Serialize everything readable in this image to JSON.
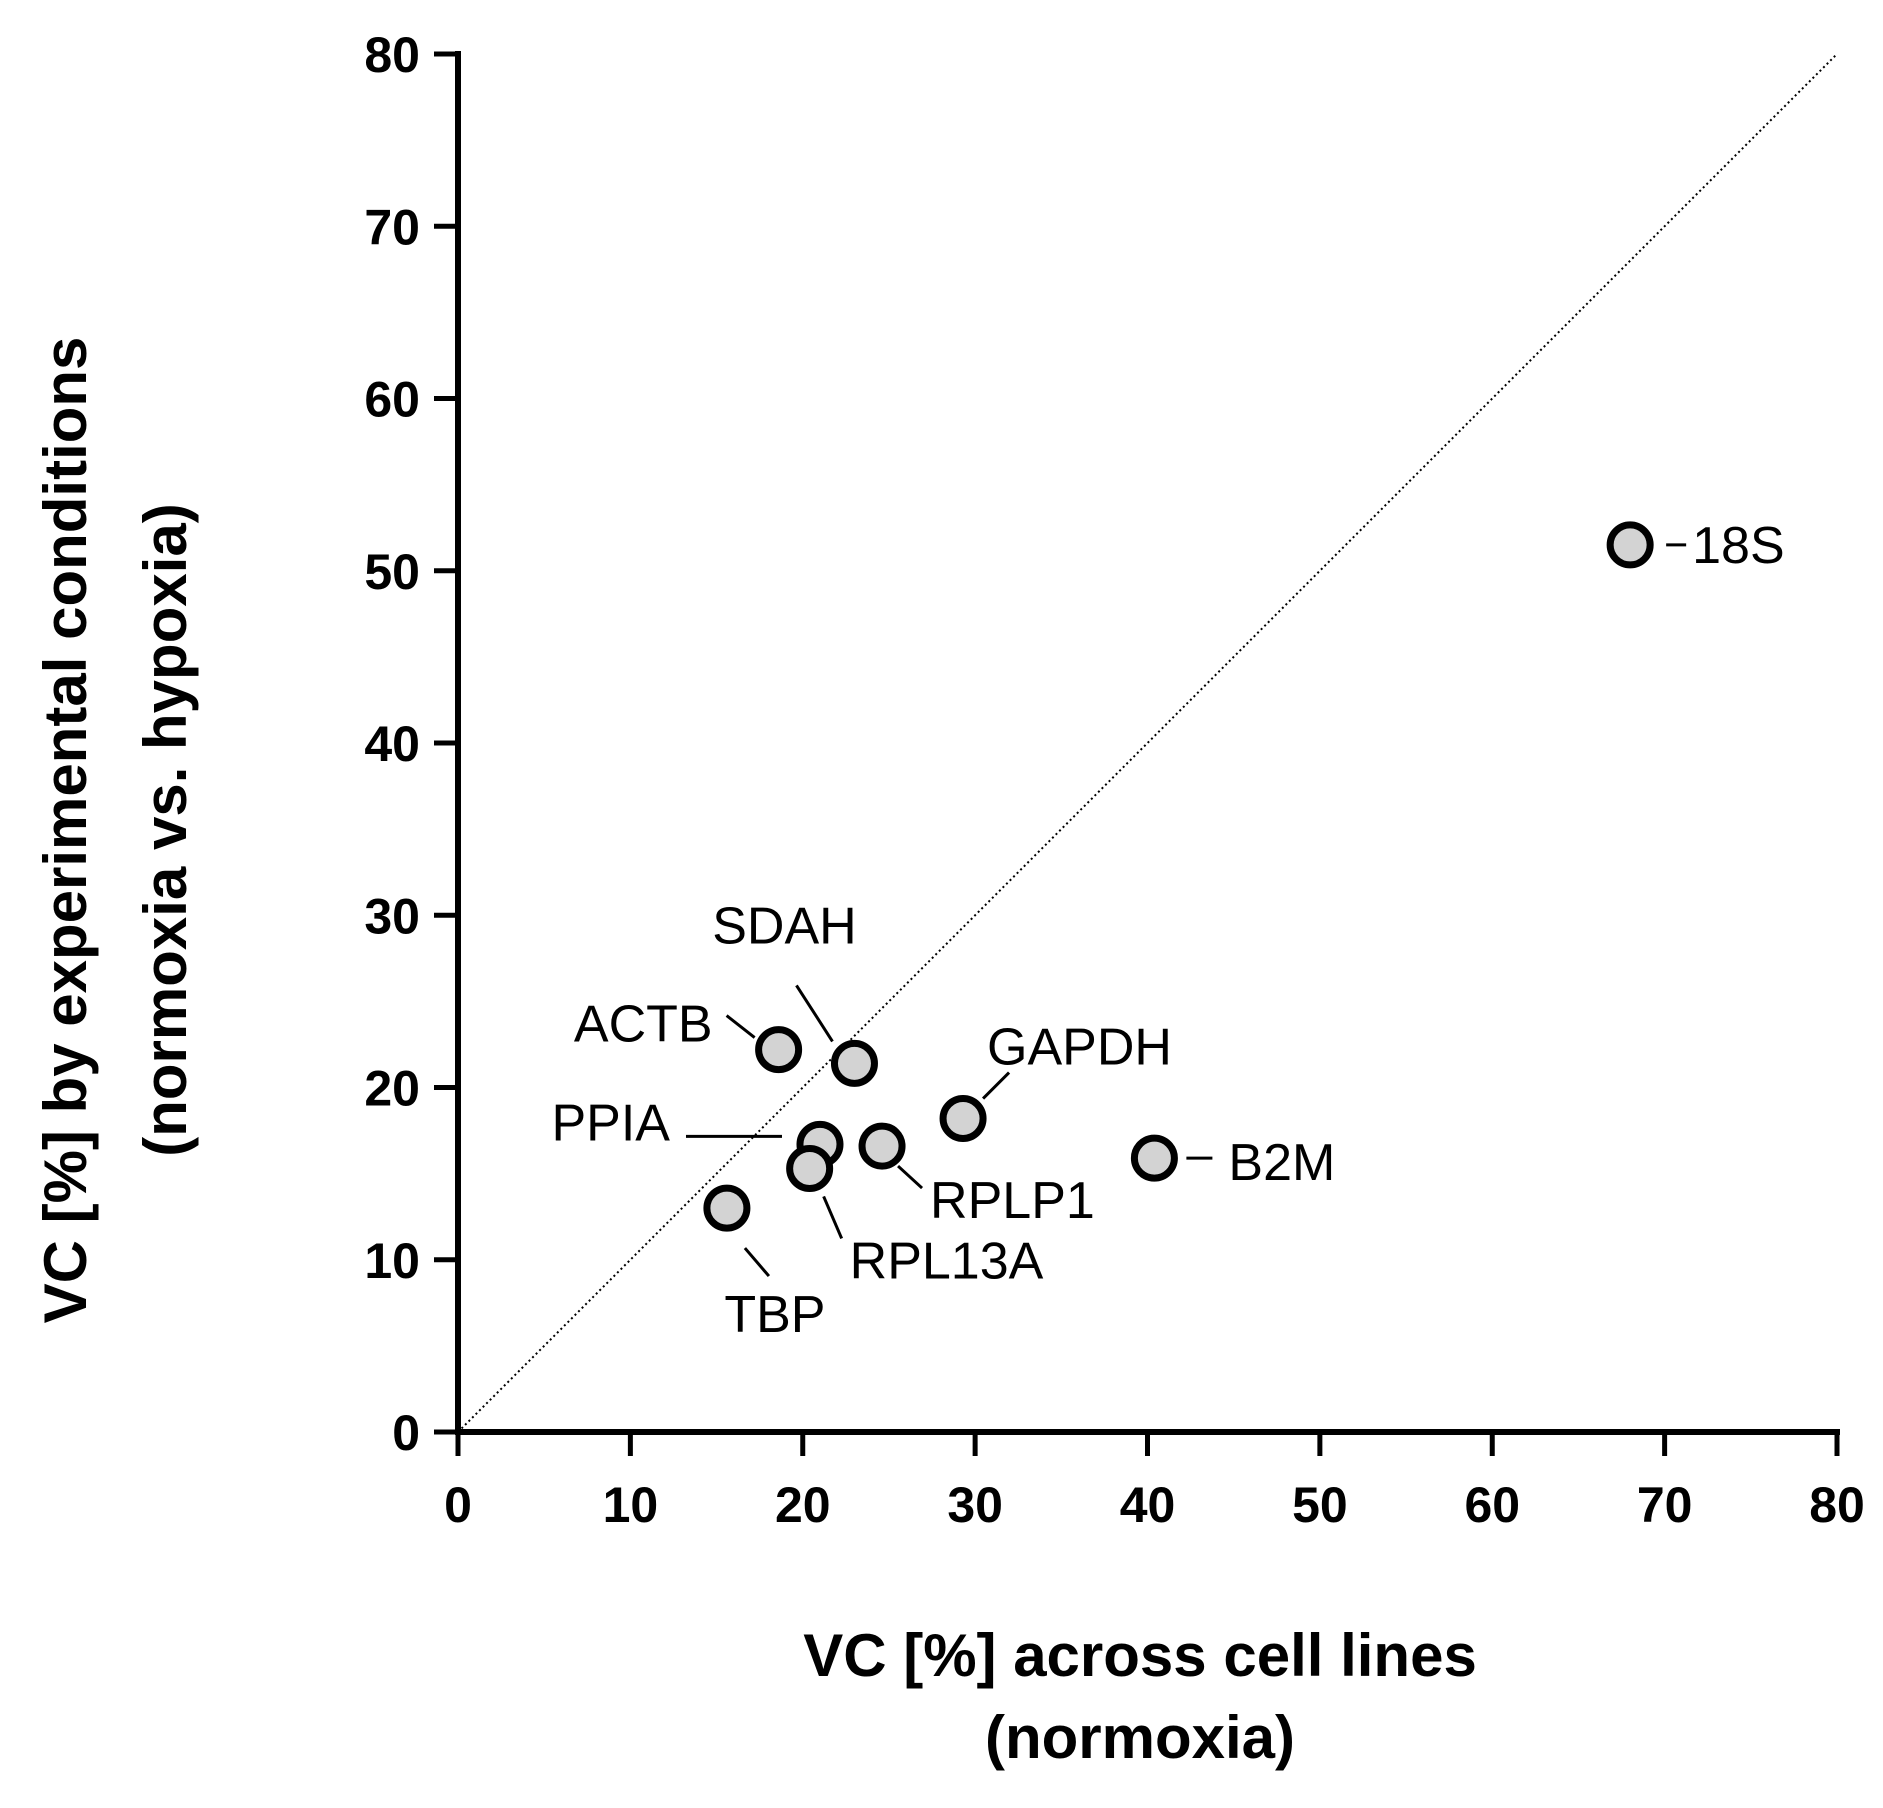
{
  "chart_data": {
    "type": "scatter",
    "title": "",
    "xlabel": [
      "VC [%] across cell lines",
      "(normoxia)"
    ],
    "ylabel": [
      "VC [%] by experimental conditions",
      "(normoxia vs. hypoxia)"
    ],
    "xlim": [
      0,
      80
    ],
    "ylim": [
      0,
      80
    ],
    "xticks": [
      "0",
      "10",
      "20",
      "30",
      "40",
      "50",
      "60",
      "70",
      "80"
    ],
    "yticks": [
      "0",
      "10",
      "20",
      "30",
      "40",
      "50",
      "60",
      "70",
      "80"
    ],
    "grid": false,
    "reference_line": "identity (y = x), dotted",
    "points": [
      {
        "label": "18S",
        "x": 68.0,
        "y": 51.5
      },
      {
        "label": "ACTB",
        "x": 18.6,
        "y": 22.2
      },
      {
        "label": "SDAH",
        "x": 23.0,
        "y": 21.4
      },
      {
        "label": "GAPDH",
        "x": 29.3,
        "y": 18.2
      },
      {
        "label": "PPIA",
        "x": 21.0,
        "y": 16.7
      },
      {
        "label": "RPLP1",
        "x": 24.6,
        "y": 16.6
      },
      {
        "label": "B2M",
        "x": 40.4,
        "y": 15.9
      },
      {
        "label": "RPL13A",
        "x": 20.4,
        "y": 15.3
      },
      {
        "label": "TBP",
        "x": 15.6,
        "y": 13.0
      }
    ],
    "colors": {
      "marker_fill": "#d3d3d3",
      "marker_edge": "#000000",
      "axis": "#000000"
    }
  }
}
